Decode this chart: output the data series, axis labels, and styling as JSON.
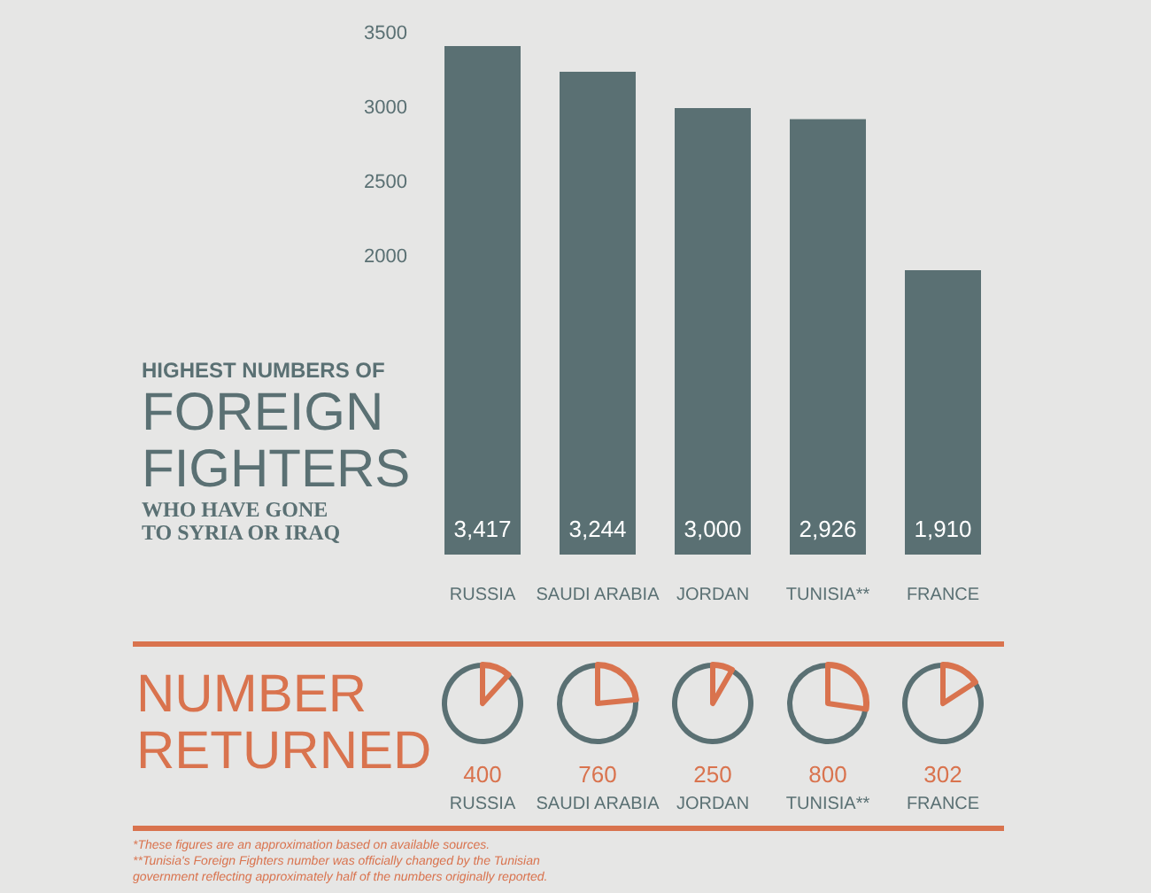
{
  "chart_data": [
    {
      "type": "bar",
      "title": "HIGHEST NUMBERS OF\nFOREIGN\nFIGHTERS\nWHO HAVE GONE\nTO SYRIA OR IRAQ",
      "categories": [
        "RUSSIA",
        "SAUDI ARABIA",
        "JORDAN",
        "TUNISIA**",
        "FRANCE"
      ],
      "values": [
        3417,
        3244,
        3000,
        2926,
        1910
      ],
      "color": "#5a7073",
      "value_labels": [
        "3,417",
        "3,244",
        "3,000",
        "2,926",
        "1,910"
      ],
      "ylim": [
        0,
        3500
      ],
      "yticks": [
        2000,
        2500,
        3000,
        3500
      ],
      "grid": false
    },
    {
      "type": "other",
      "title": "NUMBER\nRETURNED",
      "categories": [
        "RUSSIA",
        "SAUDI ARABIA",
        "JORDAN",
        "TUNISIA**",
        "FRANCE"
      ],
      "values": [
        400,
        760,
        250,
        800,
        302
      ],
      "color": "#d9734e",
      "data_labels": true,
      "annotations": [
        "*These figures are an approximation based on available sources.",
        "**Tunisia's Foreign Fighters number was officially changed by the Tunisian",
        "government reflecting approximately half of the numbers originally reported."
      ]
    }
  ]
}
